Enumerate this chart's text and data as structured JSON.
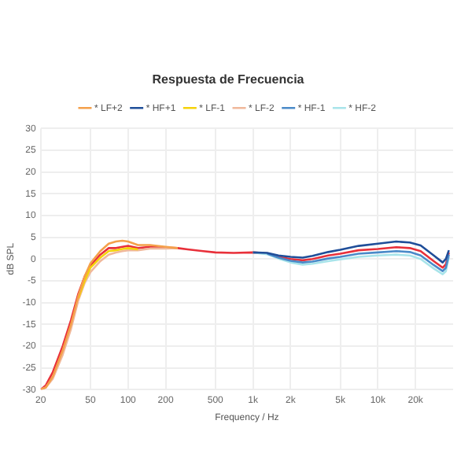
{
  "chart_data": {
    "type": "line",
    "title": "Respuesta de Frecuencia",
    "xlabel": "Frequency / Hz",
    "ylabel": "dB SPL",
    "log": "x",
    "grid": true,
    "legend": "top",
    "marker": "none",
    "line_style": "solid",
    "xlim": [
      20,
      40000
    ],
    "ylim": [
      -30,
      30
    ],
    "xticks": [
      20,
      50,
      100,
      200,
      500,
      {
        "value": 1000,
        "label": "1k"
      },
      {
        "value": 2000,
        "label": "2k"
      },
      {
        "value": 5000,
        "label": "5k"
      },
      {
        "value": 10000,
        "label": "10k"
      },
      {
        "value": 20000,
        "label": "20k"
      }
    ],
    "yticks": [
      -30,
      -25,
      -20,
      -15,
      -10,
      -5,
      0,
      5,
      10,
      15,
      20,
      25,
      30
    ],
    "x": [
      20,
      22,
      25,
      30,
      35,
      40,
      45,
      50,
      60,
      70,
      80,
      90,
      100,
      120,
      150,
      200,
      250,
      300,
      400,
      500,
      700,
      1000,
      1300,
      1600,
      2000,
      2500,
      3000,
      4000,
      5000,
      7000,
      10000,
      14000,
      18000,
      22000,
      28000,
      33000,
      35000,
      37000
    ],
    "series": [
      {
        "name": "* LF+2",
        "color": "#f4a04a",
        "values": [
          -30,
          -29.5,
          -27,
          -21,
          -15,
          -8.5,
          -4,
          -1,
          1.8,
          3.5,
          4,
          4.2,
          4,
          3.2,
          3.2,
          2.8,
          2.5,
          null,
          null,
          null,
          null,
          null,
          null,
          null,
          null,
          null,
          null,
          null,
          null,
          null,
          null,
          null,
          null,
          null,
          null,
          null,
          null,
          null
        ]
      },
      {
        "name": "* HF+1",
        "color": "#1f4e99",
        "values": [
          null,
          null,
          null,
          null,
          null,
          null,
          null,
          null,
          null,
          null,
          null,
          null,
          null,
          null,
          null,
          null,
          null,
          null,
          null,
          null,
          null,
          1.5,
          1.4,
          0.8,
          0.5,
          0.3,
          0.7,
          1.6,
          2.1,
          3,
          3.5,
          4,
          3.8,
          3.1,
          0.8,
          -0.8,
          0,
          2
        ]
      },
      {
        "name": "* LF-1",
        "color": "#f5d20a",
        "values": [
          null,
          null,
          null,
          null,
          null,
          -9,
          -5,
          -2,
          0.3,
          1.8,
          2,
          2.3,
          2.5,
          2.2,
          null,
          null,
          null,
          null,
          null,
          null,
          null,
          null,
          null,
          null,
          null,
          null,
          null,
          null,
          null,
          null,
          null,
          null,
          null,
          null,
          null,
          null,
          null,
          null
        ]
      },
      {
        "name": "* LF-2",
        "color": "#f0b89a",
        "values": [
          -30,
          -29.5,
          -27.5,
          -22,
          -16,
          -9.5,
          -5.5,
          -3,
          -0.5,
          1,
          1.5,
          1.8,
          2,
          2,
          2.4,
          2.4,
          2.5,
          null,
          null,
          null,
          null,
          null,
          null,
          null,
          null,
          null,
          null,
          null,
          null,
          null,
          null,
          null,
          null,
          null,
          null,
          null,
          null,
          null
        ]
      },
      {
        "name": "* HF-1",
        "color": "#4a8ac8",
        "values": [
          null,
          null,
          null,
          null,
          null,
          null,
          null,
          null,
          null,
          null,
          null,
          null,
          null,
          null,
          null,
          null,
          null,
          null,
          null,
          null,
          null,
          null,
          1.2,
          0.3,
          -0.4,
          -0.8,
          -0.6,
          0.1,
          0.5,
          1.2,
          1.5,
          1.8,
          1.6,
          0.8,
          -1.4,
          -2.8,
          -2,
          1
        ]
      },
      {
        "name": "* HF-2",
        "color": "#a8e4ea",
        "values": [
          null,
          null,
          null,
          null,
          null,
          null,
          null,
          null,
          null,
          null,
          null,
          null,
          null,
          null,
          null,
          null,
          null,
          null,
          null,
          null,
          null,
          1.5,
          1.1,
          0.1,
          -0.8,
          -1.3,
          -1.1,
          -0.5,
          -0.1,
          0.5,
          0.8,
          1,
          0.8,
          0,
          -2.2,
          -3.5,
          -2.8,
          0.5
        ]
      },
      {
        "color": "#e8303a",
        "values": [
          -30,
          -29,
          -26,
          -20,
          -14,
          -8,
          -4,
          -1.5,
          1,
          2.5,
          2.5,
          2.8,
          3,
          2.5,
          2.8,
          2.6,
          2.5,
          2.2,
          1.8,
          1.5,
          1.4,
          1.5,
          1.3,
          0.5,
          0,
          -0.3,
          0,
          0.8,
          1.2,
          2,
          2.3,
          2.7,
          2.5,
          1.8,
          -0.5,
          -2,
          -1.2,
          1.5
        ]
      }
    ]
  }
}
